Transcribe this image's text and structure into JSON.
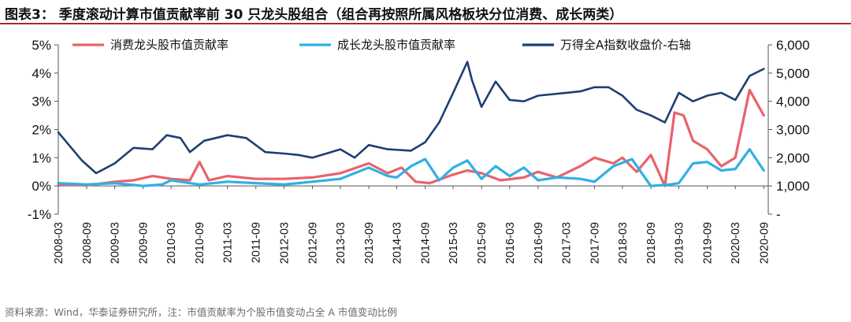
{
  "header": {
    "title": "图表3：  季度滚动计算市值贡献率前 30 只龙头股组合（组合再按照所属风格板块分位消费、成长两类）",
    "source": "资料来源：Wind，华泰证券研究所，注：市值贡献率为个股市值变动占全 A 市值变动比例"
  },
  "colors": {
    "consumer": "#e8636b",
    "growth": "#2fb0e6",
    "index": "#1f3f73",
    "title_rule": "#b0262b"
  },
  "chart_data": {
    "type": "line",
    "left_axis": {
      "ylim": [
        -1,
        5
      ],
      "ticks": [
        "-1%",
        "0%",
        "1%",
        "2%",
        "3%",
        "4%",
        "5%"
      ]
    },
    "right_axis": {
      "ylim": [
        0,
        6000
      ],
      "ticks": [
        "-",
        "1,000",
        "2,000",
        "3,000",
        "4,000",
        "5,000",
        "6,000"
      ]
    },
    "x_ticks": [
      "2008-03",
      "2008-09",
      "2009-03",
      "2009-09",
      "2010-03",
      "2010-09",
      "2011-03",
      "2011-09",
      "2012-03",
      "2012-09",
      "2013-03",
      "2013-09",
      "2014-03",
      "2014-09",
      "2015-03",
      "2015-09",
      "2016-03",
      "2016-09",
      "2017-03",
      "2017-09",
      "2018-03",
      "2018-09",
      "2019-03",
      "2019-09",
      "2020-03",
      "2020-09"
    ],
    "x_range": [
      "2008-03-01",
      "2020-09-30"
    ],
    "series": [
      {
        "name": "消费龙头股市值贡献率",
        "axis": "left",
        "points": [
          [
            "2008-03-01",
            0.05
          ],
          [
            "2008-09-01",
            0.02
          ],
          [
            "2009-03-01",
            0.15
          ],
          [
            "2009-07-01",
            0.2
          ],
          [
            "2009-11-01",
            0.35
          ],
          [
            "2010-03-01",
            0.25
          ],
          [
            "2010-07-01",
            0.2
          ],
          [
            "2010-09-01",
            0.85
          ],
          [
            "2010-11-01",
            0.2
          ],
          [
            "2011-03-01",
            0.35
          ],
          [
            "2011-09-01",
            0.25
          ],
          [
            "2012-03-01",
            0.25
          ],
          [
            "2012-09-01",
            0.3
          ],
          [
            "2013-03-01",
            0.45
          ],
          [
            "2013-09-01",
            0.8
          ],
          [
            "2014-01-01",
            0.45
          ],
          [
            "2014-04-01",
            0.65
          ],
          [
            "2014-07-01",
            0.15
          ],
          [
            "2014-10-01",
            0.1
          ],
          [
            "2015-03-01",
            0.4
          ],
          [
            "2015-06-01",
            0.55
          ],
          [
            "2015-09-01",
            0.45
          ],
          [
            "2016-01-01",
            0.2
          ],
          [
            "2016-06-01",
            0.3
          ],
          [
            "2016-09-01",
            0.5
          ],
          [
            "2017-01-01",
            0.3
          ],
          [
            "2017-06-01",
            0.7
          ],
          [
            "2017-09-01",
            1.0
          ],
          [
            "2018-01-01",
            0.8
          ],
          [
            "2018-03-01",
            1.0
          ],
          [
            "2018-06-01",
            0.5
          ],
          [
            "2018-09-01",
            1.1
          ],
          [
            "2018-12-01",
            0.0
          ],
          [
            "2019-02-01",
            2.6
          ],
          [
            "2019-04-01",
            2.5
          ],
          [
            "2019-06-01",
            1.6
          ],
          [
            "2019-09-01",
            1.3
          ],
          [
            "2019-12-01",
            0.7
          ],
          [
            "2020-03-01",
            1.0
          ],
          [
            "2020-06-01",
            3.4
          ],
          [
            "2020-09-01",
            2.5
          ]
        ]
      },
      {
        "name": "成长龙头股市值贡献率",
        "axis": "left",
        "points": [
          [
            "2008-03-01",
            0.1
          ],
          [
            "2008-09-01",
            0.05
          ],
          [
            "2009-03-01",
            0.1
          ],
          [
            "2009-09-01",
            0.0
          ],
          [
            "2010-01-01",
            0.05
          ],
          [
            "2010-03-01",
            0.2
          ],
          [
            "2010-09-01",
            0.05
          ],
          [
            "2011-03-01",
            0.15
          ],
          [
            "2011-09-01",
            0.1
          ],
          [
            "2012-03-01",
            0.05
          ],
          [
            "2012-09-01",
            0.15
          ],
          [
            "2013-03-01",
            0.25
          ],
          [
            "2013-09-01",
            0.65
          ],
          [
            "2014-01-01",
            0.35
          ],
          [
            "2014-03-01",
            0.3
          ],
          [
            "2014-06-01",
            0.7
          ],
          [
            "2014-09-01",
            0.95
          ],
          [
            "2014-12-01",
            0.2
          ],
          [
            "2015-03-01",
            0.65
          ],
          [
            "2015-06-01",
            0.9
          ],
          [
            "2015-09-01",
            0.25
          ],
          [
            "2015-12-01",
            0.7
          ],
          [
            "2016-03-01",
            0.35
          ],
          [
            "2016-06-01",
            0.65
          ],
          [
            "2016-09-01",
            0.2
          ],
          [
            "2017-01-01",
            0.3
          ],
          [
            "2017-06-01",
            0.25
          ],
          [
            "2017-09-01",
            0.15
          ],
          [
            "2018-01-01",
            0.7
          ],
          [
            "2018-05-01",
            0.95
          ],
          [
            "2018-09-01",
            0.0
          ],
          [
            "2019-01-01",
            0.05
          ],
          [
            "2019-03-01",
            0.1
          ],
          [
            "2019-06-01",
            0.8
          ],
          [
            "2019-09-01",
            0.85
          ],
          [
            "2019-12-01",
            0.55
          ],
          [
            "2020-03-01",
            0.6
          ],
          [
            "2020-06-01",
            1.3
          ],
          [
            "2020-09-01",
            0.55
          ]
        ]
      },
      {
        "name": "万得全A指数收盘价-右轴",
        "axis": "right",
        "points": [
          [
            "2008-03-01",
            2900
          ],
          [
            "2008-08-01",
            1900
          ],
          [
            "2008-11-01",
            1450
          ],
          [
            "2009-03-01",
            1800
          ],
          [
            "2009-07-01",
            2350
          ],
          [
            "2009-11-01",
            2300
          ],
          [
            "2010-02-01",
            2800
          ],
          [
            "2010-05-01",
            2700
          ],
          [
            "2010-07-01",
            2200
          ],
          [
            "2010-10-01",
            2600
          ],
          [
            "2011-03-01",
            2800
          ],
          [
            "2011-07-01",
            2700
          ],
          [
            "2011-11-01",
            2200
          ],
          [
            "2012-03-01",
            2150
          ],
          [
            "2012-06-01",
            2100
          ],
          [
            "2012-09-01",
            2000
          ],
          [
            "2012-12-01",
            2150
          ],
          [
            "2013-03-01",
            2300
          ],
          [
            "2013-06-01",
            2000
          ],
          [
            "2013-09-01",
            2450
          ],
          [
            "2014-01-01",
            2300
          ],
          [
            "2014-06-01",
            2250
          ],
          [
            "2014-09-01",
            2550
          ],
          [
            "2014-12-01",
            3250
          ],
          [
            "2015-03-01",
            4300
          ],
          [
            "2015-06-01",
            5400
          ],
          [
            "2015-07-01",
            4750
          ],
          [
            "2015-09-01",
            3800
          ],
          [
            "2015-12-01",
            4700
          ],
          [
            "2016-03-01",
            4050
          ],
          [
            "2016-06-01",
            4000
          ],
          [
            "2016-09-01",
            4200
          ],
          [
            "2017-03-01",
            4300
          ],
          [
            "2017-06-01",
            4350
          ],
          [
            "2017-09-01",
            4500
          ],
          [
            "2017-12-01",
            4500
          ],
          [
            "2018-03-01",
            4200
          ],
          [
            "2018-06-01",
            3700
          ],
          [
            "2018-09-01",
            3500
          ],
          [
            "2018-12-01",
            3250
          ],
          [
            "2019-03-01",
            4300
          ],
          [
            "2019-06-01",
            4000
          ],
          [
            "2019-09-01",
            4200
          ],
          [
            "2019-12-01",
            4300
          ],
          [
            "2020-03-01",
            4050
          ],
          [
            "2020-06-01",
            4900
          ],
          [
            "2020-09-01",
            5150
          ]
        ]
      }
    ],
    "legend_position": "top",
    "grid": false
  }
}
